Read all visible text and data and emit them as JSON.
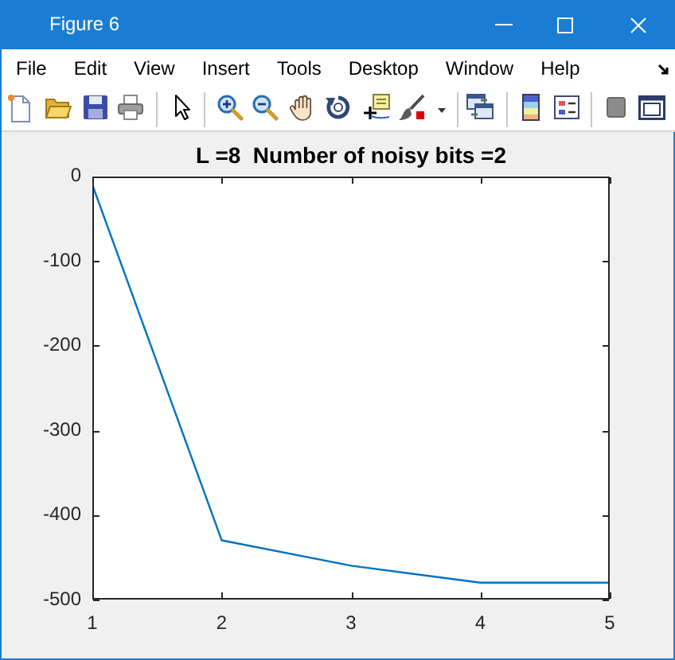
{
  "chart_data": {
    "type": "line",
    "title": "L =8  Number of noisy bits =2",
    "x": [
      1,
      2,
      3,
      4,
      5
    ],
    "values": [
      -10,
      -430,
      -460,
      -480,
      -480
    ],
    "color": "#0072bd",
    "xlim": [
      1,
      5
    ],
    "xticks": [
      1,
      2,
      3,
      4,
      5
    ],
    "ylim": [
      -500,
      0
    ],
    "yticks": [
      -500,
      -400,
      -300,
      -200,
      -100,
      0
    ],
    "marker": "none",
    "line_style": "solid",
    "annotations": [
      "Figure 6",
      "File",
      "Edit",
      "View",
      "Insert",
      "Tools",
      "Desktop",
      "Window",
      "Help"
    ]
  }
}
